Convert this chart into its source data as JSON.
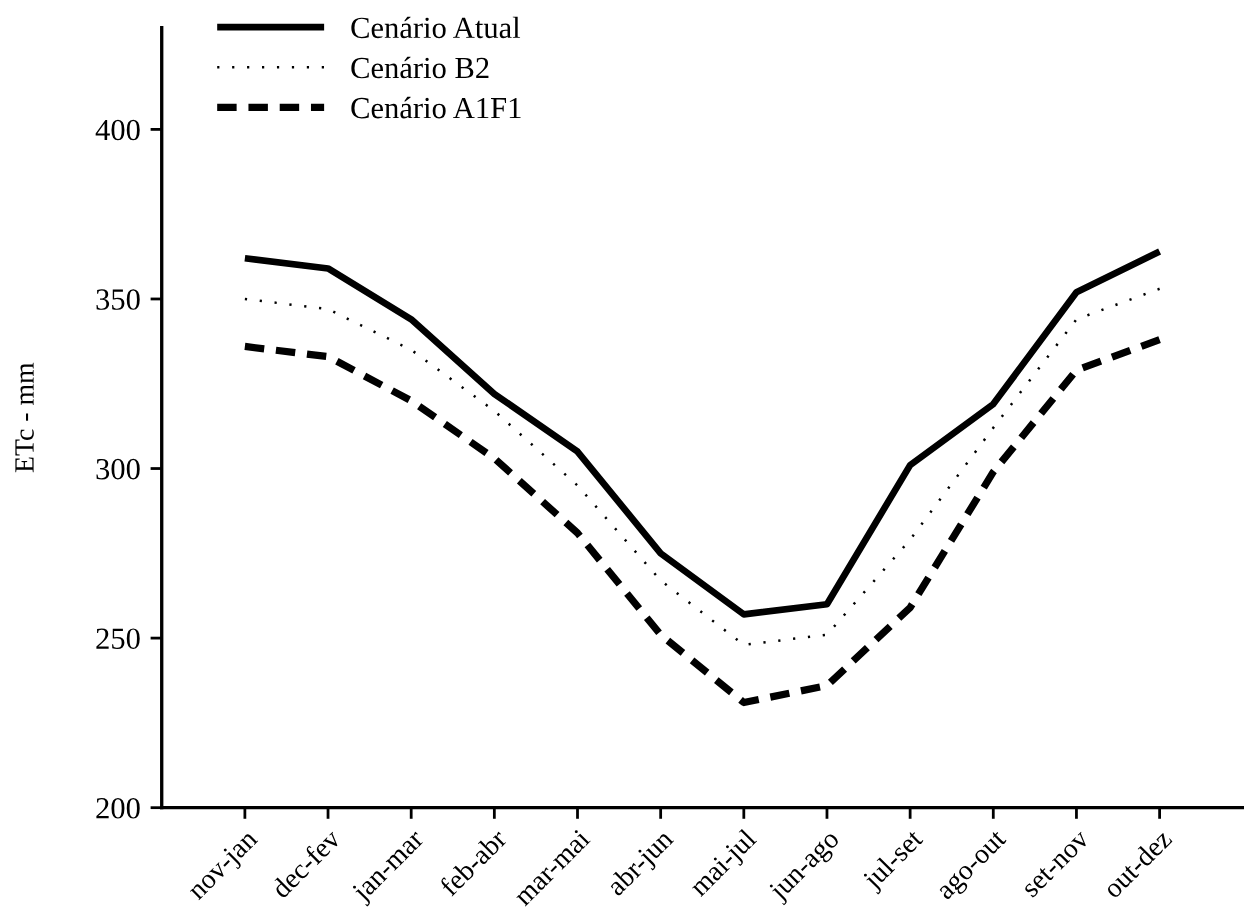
{
  "chart_data": {
    "type": "line",
    "ylabel": "ETc - mm",
    "categories": [
      "nov-jan",
      "dec-fev",
      "jan-mar",
      "feb-abr",
      "mar-mai",
      "abr-jun",
      "mai-jul",
      "jun-ago",
      "jul-set",
      "ago-out",
      "set-nov",
      "out-dez"
    ],
    "series": [
      {
        "name": "Cenário Atual",
        "color": "#000000",
        "line_style": "solid",
        "values": [
          362,
          359,
          344,
          322,
          305,
          275,
          257,
          260,
          301,
          319,
          352,
          364
        ]
      },
      {
        "name": "Cenário B2",
        "color": "#000000",
        "line_style": "dotted",
        "values": [
          350,
          347,
          335,
          317,
          295,
          267,
          248,
          251,
          279,
          312,
          344,
          353
        ]
      },
      {
        "name": "Cenário A1F1",
        "color": "#000000",
        "line_style": "dashed",
        "values": [
          336,
          333,
          320,
          303,
          281,
          251,
          231,
          236,
          259,
          299,
          329,
          338
        ]
      }
    ],
    "ylim": [
      200,
      430
    ],
    "yticks": [
      200,
      250,
      300,
      350,
      400
    ],
    "grid": false,
    "legend": "top left",
    "marker": "none"
  }
}
